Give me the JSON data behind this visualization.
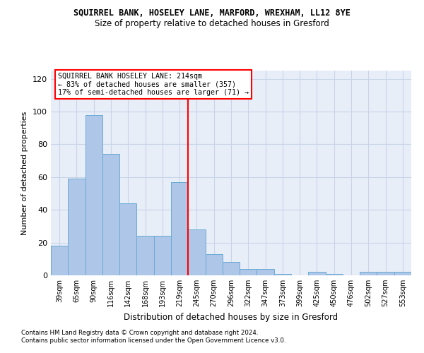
{
  "title": "SQUIRREL BANK, HOSELEY LANE, MARFORD, WREXHAM, LL12 8YE",
  "subtitle": "Size of property relative to detached houses in Gresford",
  "xlabel": "Distribution of detached houses by size in Gresford",
  "ylabel": "Number of detached properties",
  "categories": [
    "39sqm",
    "65sqm",
    "90sqm",
    "116sqm",
    "142sqm",
    "168sqm",
    "193sqm",
    "219sqm",
    "245sqm",
    "270sqm",
    "296sqm",
    "322sqm",
    "347sqm",
    "373sqm",
    "399sqm",
    "425sqm",
    "450sqm",
    "476sqm",
    "502sqm",
    "527sqm",
    "553sqm"
  ],
  "values": [
    18,
    59,
    98,
    74,
    44,
    24,
    24,
    57,
    28,
    13,
    8,
    4,
    4,
    1,
    0,
    2,
    1,
    0,
    2,
    2,
    2
  ],
  "bar_color": "#aec6e8",
  "bar_edge_color": "#6aaad4",
  "grid_color": "#c8d4e8",
  "background_color": "#e8eef8",
  "vline_x": 7.5,
  "vline_color": "red",
  "annotation_box_text": "SQUIRREL BANK HOSELEY LANE: 214sqm\n← 83% of detached houses are smaller (357)\n17% of semi-detached houses are larger (71) →",
  "ylim": [
    0,
    125
  ],
  "yticks": [
    0,
    20,
    40,
    60,
    80,
    100,
    120
  ],
  "footnote1": "Contains HM Land Registry data © Crown copyright and database right 2024.",
  "footnote2": "Contains public sector information licensed under the Open Government Licence v3.0."
}
